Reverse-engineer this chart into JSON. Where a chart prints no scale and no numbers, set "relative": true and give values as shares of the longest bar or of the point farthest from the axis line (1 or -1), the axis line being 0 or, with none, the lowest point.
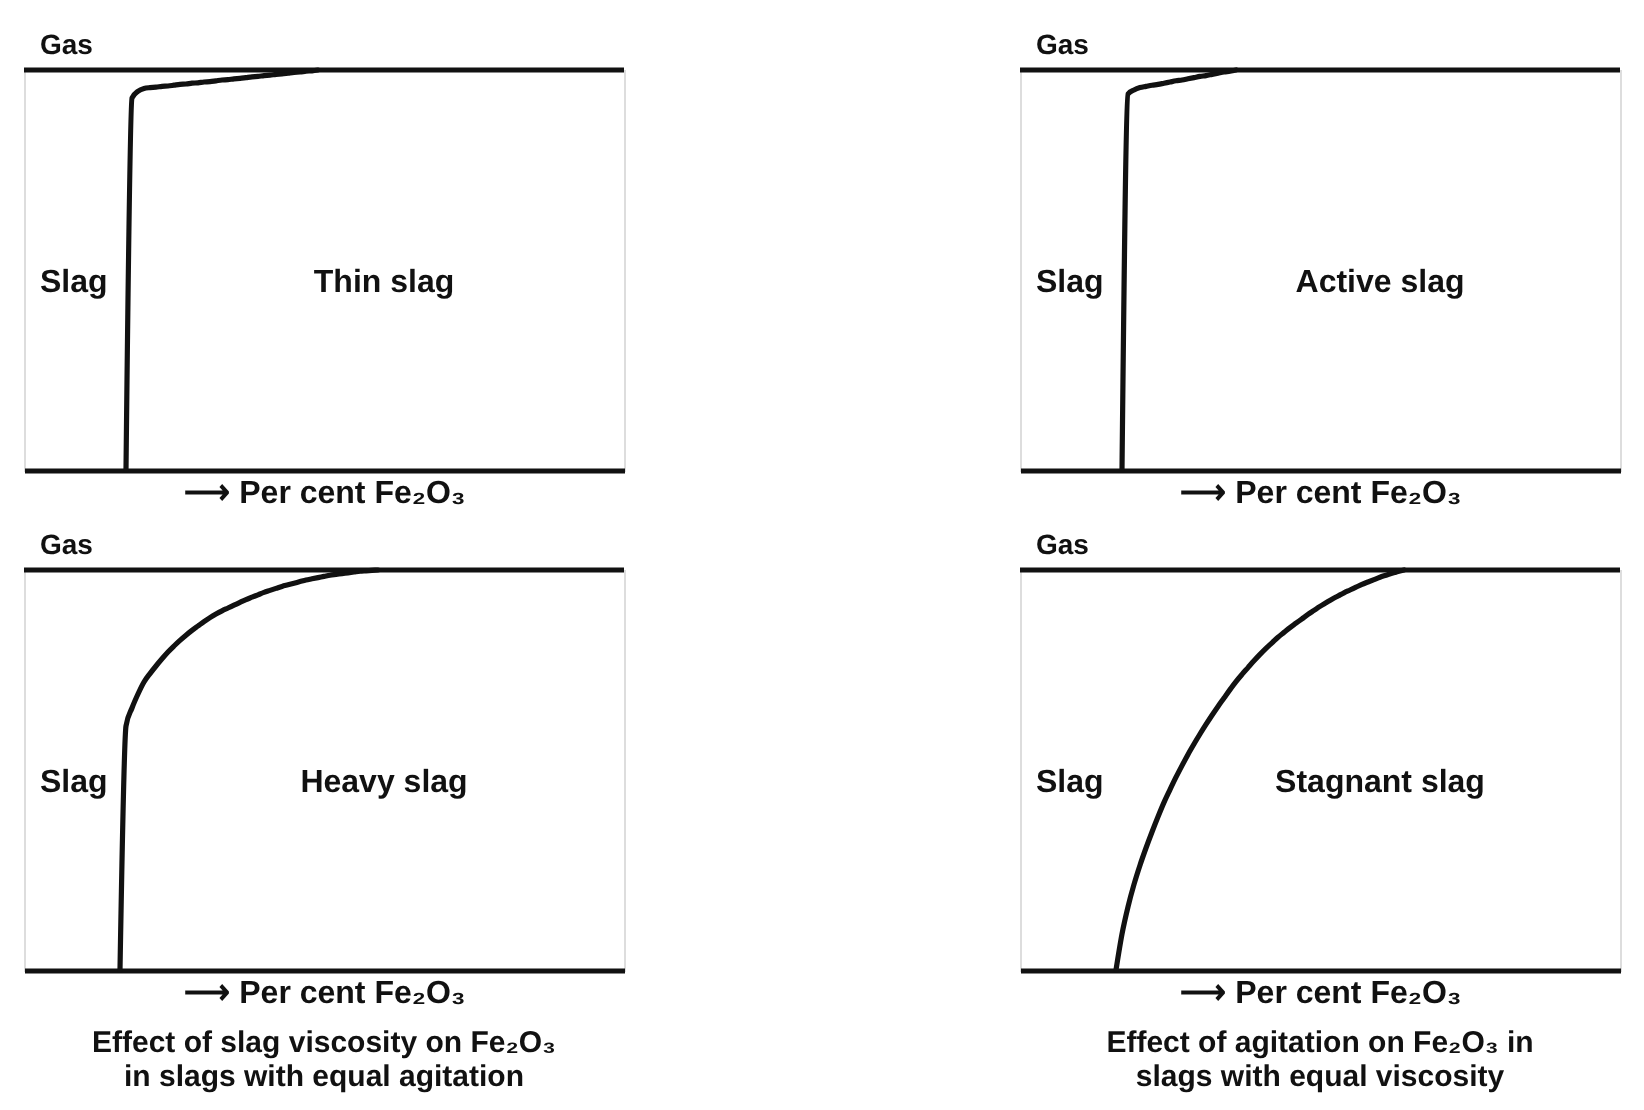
{
  "chart_data": [
    {
      "type": "line",
      "relative": true,
      "xlabel": "⟶ Per cent Fe₂O₃",
      "ylabel": "Slag",
      "annotations": [
        "Thin slag"
      ],
      "ref_lines": [
        {
          "axis": "y",
          "value": 1,
          "label": "Gas",
          "color": "#111111"
        }
      ],
      "categories": [
        null,
        null,
        null,
        null,
        null,
        null,
        null,
        null,
        null,
        null,
        null,
        null,
        null,
        null,
        null,
        null,
        null,
        null,
        null,
        null,
        null,
        null,
        null,
        null,
        null,
        null,
        null,
        null,
        null,
        null,
        null,
        null,
        null,
        null,
        null,
        null,
        null,
        null,
        null,
        null,
        null,
        null,
        null,
        null,
        null,
        null,
        null,
        null,
        null,
        null,
        null,
        null,
        null,
        null,
        null,
        null,
        null,
        null,
        null,
        null,
        null,
        null,
        null,
        null,
        null,
        null,
        null,
        null,
        null,
        null,
        null,
        null,
        null,
        null,
        null,
        null,
        null,
        null,
        null,
        null,
        null,
        null,
        null,
        null,
        null,
        null,
        null,
        null,
        null,
        null,
        null,
        null,
        null,
        null,
        null,
        null,
        null,
        null,
        null,
        null,
        null
      ],
      "series": [
        {
          "color": "#111111",
          "values": [
            null,
            null,
            null,
            null,
            null,
            null,
            null,
            null,
            null,
            null,
            null,
            null,
            null,
            null,
            null,
            null,
            null,
            0,
            0.93,
            0.947,
            0.954,
            0.956,
            0.957,
            0.959,
            0.96,
            0.962,
            0.964,
            0.965,
            0.967,
            0.968,
            0.97,
            0.971,
            0.973,
            0.975,
            0.976,
            0.978,
            0.979,
            0.981,
            0.983,
            0.984,
            0.986,
            0.987,
            0.989,
            0.99,
            0.992,
            0.994,
            0.995,
            0.997,
            0.998,
            1,
            null,
            null,
            null,
            null,
            null,
            null,
            null,
            null,
            null,
            null,
            null,
            null,
            null,
            null,
            null,
            null,
            null,
            null,
            null,
            null,
            null,
            null,
            null,
            null,
            null,
            null,
            null,
            null,
            null,
            null,
            null,
            null,
            null,
            null,
            null,
            null,
            null,
            null,
            null,
            null,
            null,
            null,
            null,
            null,
            null,
            null,
            null,
            null,
            null,
            null,
            null
          ]
        }
      ]
    },
    {
      "type": "line",
      "relative": true,
      "xlabel": "⟶ Per cent Fe₂O₃",
      "ylabel": "Slag",
      "annotations": [
        "Active slag"
      ],
      "ref_lines": [
        {
          "axis": "y",
          "value": 1,
          "label": "Gas",
          "color": "#111111"
        }
      ],
      "categories": [
        null,
        null,
        null,
        null,
        null,
        null,
        null,
        null,
        null,
        null,
        null,
        null,
        null,
        null,
        null,
        null,
        null,
        null,
        null,
        null,
        null,
        null,
        null,
        null,
        null,
        null,
        null,
        null,
        null,
        null,
        null,
        null,
        null,
        null,
        null,
        null,
        null,
        null,
        null,
        null,
        null,
        null,
        null,
        null,
        null,
        null,
        null,
        null,
        null,
        null,
        null,
        null,
        null,
        null,
        null,
        null,
        null,
        null,
        null,
        null,
        null,
        null,
        null,
        null,
        null,
        null,
        null,
        null,
        null,
        null,
        null,
        null,
        null,
        null,
        null,
        null,
        null,
        null,
        null,
        null,
        null,
        null,
        null,
        null,
        null,
        null,
        null,
        null,
        null,
        null,
        null,
        null,
        null,
        null,
        null,
        null,
        null,
        null,
        null,
        null,
        null
      ],
      "series": [
        {
          "color": "#111111",
          "values": [
            null,
            null,
            null,
            null,
            null,
            null,
            null,
            null,
            null,
            null,
            null,
            null,
            null,
            null,
            null,
            null,
            null,
            0,
            0.94,
            0.95,
            0.956,
            0.959,
            0.962,
            0.964,
            0.967,
            0.97,
            0.973,
            0.975,
            0.978,
            0.981,
            0.984,
            0.986,
            0.989,
            0.992,
            0.995,
            0.997,
            1,
            null,
            null,
            null,
            null,
            null,
            null,
            null,
            null,
            null,
            null,
            null,
            null,
            null,
            null,
            null,
            null,
            null,
            null,
            null,
            null,
            null,
            null,
            null,
            null,
            null,
            null,
            null,
            null,
            null,
            null,
            null,
            null,
            null,
            null,
            null,
            null,
            null,
            null,
            null,
            null,
            null,
            null,
            null,
            null,
            null,
            null,
            null,
            null,
            null,
            null,
            null,
            null,
            null,
            null,
            null,
            null,
            null,
            null,
            null,
            null,
            null,
            null,
            null,
            null
          ]
        }
      ]
    },
    {
      "type": "line",
      "relative": true,
      "xlabel": "⟶ Per cent Fe₂O₃",
      "ylabel": "Slag",
      "annotations": [
        "Heavy slag",
        "Effect of slag viscosity on Fe₂O₃ in slags with equal agitation"
      ],
      "ref_lines": [
        {
          "axis": "y",
          "value": 1,
          "label": "Gas",
          "color": "#111111"
        }
      ],
      "categories": [
        null,
        null,
        null,
        null,
        null,
        null,
        null,
        null,
        null,
        null,
        null,
        null,
        null,
        null,
        null,
        null,
        null,
        null,
        null,
        null,
        null,
        null,
        null,
        null,
        null,
        null,
        null,
        null,
        null,
        null,
        null,
        null,
        null,
        null,
        null,
        null,
        null,
        null,
        null,
        null,
        null,
        null,
        null,
        null,
        null,
        null,
        null,
        null,
        null,
        null,
        null,
        null,
        null,
        null,
        null,
        null,
        null,
        null,
        null,
        null,
        null,
        null,
        null,
        null,
        null,
        null,
        null,
        null,
        null,
        null,
        null,
        null,
        null,
        null,
        null,
        null,
        null,
        null,
        null,
        null,
        null,
        null,
        null,
        null,
        null,
        null,
        null,
        null,
        null,
        null,
        null,
        null,
        null,
        null,
        null,
        null,
        null,
        null,
        null,
        null,
        null
      ],
      "series": [
        {
          "color": "#111111",
          "values": [
            null,
            null,
            null,
            null,
            null,
            null,
            null,
            null,
            null,
            null,
            null,
            null,
            null,
            null,
            null,
            null,
            0,
            0.61,
            0.655,
            0.69,
            0.72,
            0.741,
            0.76,
            0.778,
            0.795,
            0.81,
            0.824,
            0.837,
            0.849,
            0.86,
            0.871,
            0.881,
            0.89,
            0.898,
            0.905,
            0.912,
            0.919,
            0.926,
            0.932,
            0.938,
            0.944,
            0.949,
            0.954,
            0.959,
            0.963,
            0.967,
            0.971,
            0.975,
            0.978,
            0.981,
            0.984,
            0.987,
            0.989,
            0.991,
            0.993,
            0.995,
            0.997,
            0.998,
            0.999,
            1,
            null,
            null,
            null,
            null,
            null,
            null,
            null,
            null,
            null,
            null,
            null,
            null,
            null,
            null,
            null,
            null,
            null,
            null,
            null,
            null,
            null,
            null,
            null,
            null,
            null,
            null,
            null,
            null,
            null,
            null,
            null,
            null,
            null,
            null,
            null,
            null,
            null,
            null,
            null,
            null,
            null
          ]
        }
      ]
    },
    {
      "type": "line",
      "relative": true,
      "xlabel": "⟶ Per cent Fe₂O₃",
      "ylabel": "Slag",
      "annotations": [
        "Stagnant slag",
        "Effect of agitation on Fe₂O₃ in slags with equal viscosity"
      ],
      "ref_lines": [
        {
          "axis": "y",
          "value": 1,
          "label": "Gas",
          "color": "#111111"
        }
      ],
      "categories": [
        null,
        null,
        null,
        null,
        null,
        null,
        null,
        null,
        null,
        null,
        null,
        null,
        null,
        null,
        null,
        null,
        null,
        null,
        null,
        null,
        null,
        null,
        null,
        null,
        null,
        null,
        null,
        null,
        null,
        null,
        null,
        null,
        null,
        null,
        null,
        null,
        null,
        null,
        null,
        null,
        null,
        null,
        null,
        null,
        null,
        null,
        null,
        null,
        null,
        null,
        null,
        null,
        null,
        null,
        null,
        null,
        null,
        null,
        null,
        null,
        null,
        null,
        null,
        null,
        null,
        null,
        null,
        null,
        null,
        null,
        null,
        null,
        null,
        null,
        null,
        null,
        null,
        null,
        null,
        null,
        null,
        null,
        null,
        null,
        null,
        null,
        null,
        null,
        null,
        null,
        null,
        null,
        null,
        null,
        null,
        null,
        null,
        null,
        null,
        null,
        null
      ],
      "series": [
        {
          "color": "#111111",
          "values": [
            null,
            null,
            null,
            null,
            null,
            null,
            null,
            null,
            null,
            null,
            null,
            null,
            null,
            null,
            null,
            null,
            0,
            0.09,
            0.158,
            0.214,
            0.262,
            0.305,
            0.345,
            0.383,
            0.419,
            0.451,
            0.482,
            0.511,
            0.539,
            0.565,
            0.59,
            0.614,
            0.637,
            0.659,
            0.68,
            0.701,
            0.721,
            0.739,
            0.756,
            0.773,
            0.789,
            0.804,
            0.818,
            0.832,
            0.844,
            0.856,
            0.867,
            0.878,
            0.889,
            0.899,
            0.909,
            0.918,
            0.927,
            0.935,
            0.943,
            0.95,
            0.957,
            0.964,
            0.97,
            0.976,
            0.982,
            0.987,
            0.992,
            0.996,
            1,
            null,
            null,
            null,
            null,
            null,
            null,
            null,
            null,
            null,
            null,
            null,
            null,
            null,
            null,
            null,
            null,
            null,
            null,
            null,
            null,
            null,
            null,
            null,
            null,
            null,
            null,
            null,
            null,
            null,
            null,
            null,
            null,
            null,
            null,
            null,
            null
          ]
        }
      ]
    }
  ]
}
